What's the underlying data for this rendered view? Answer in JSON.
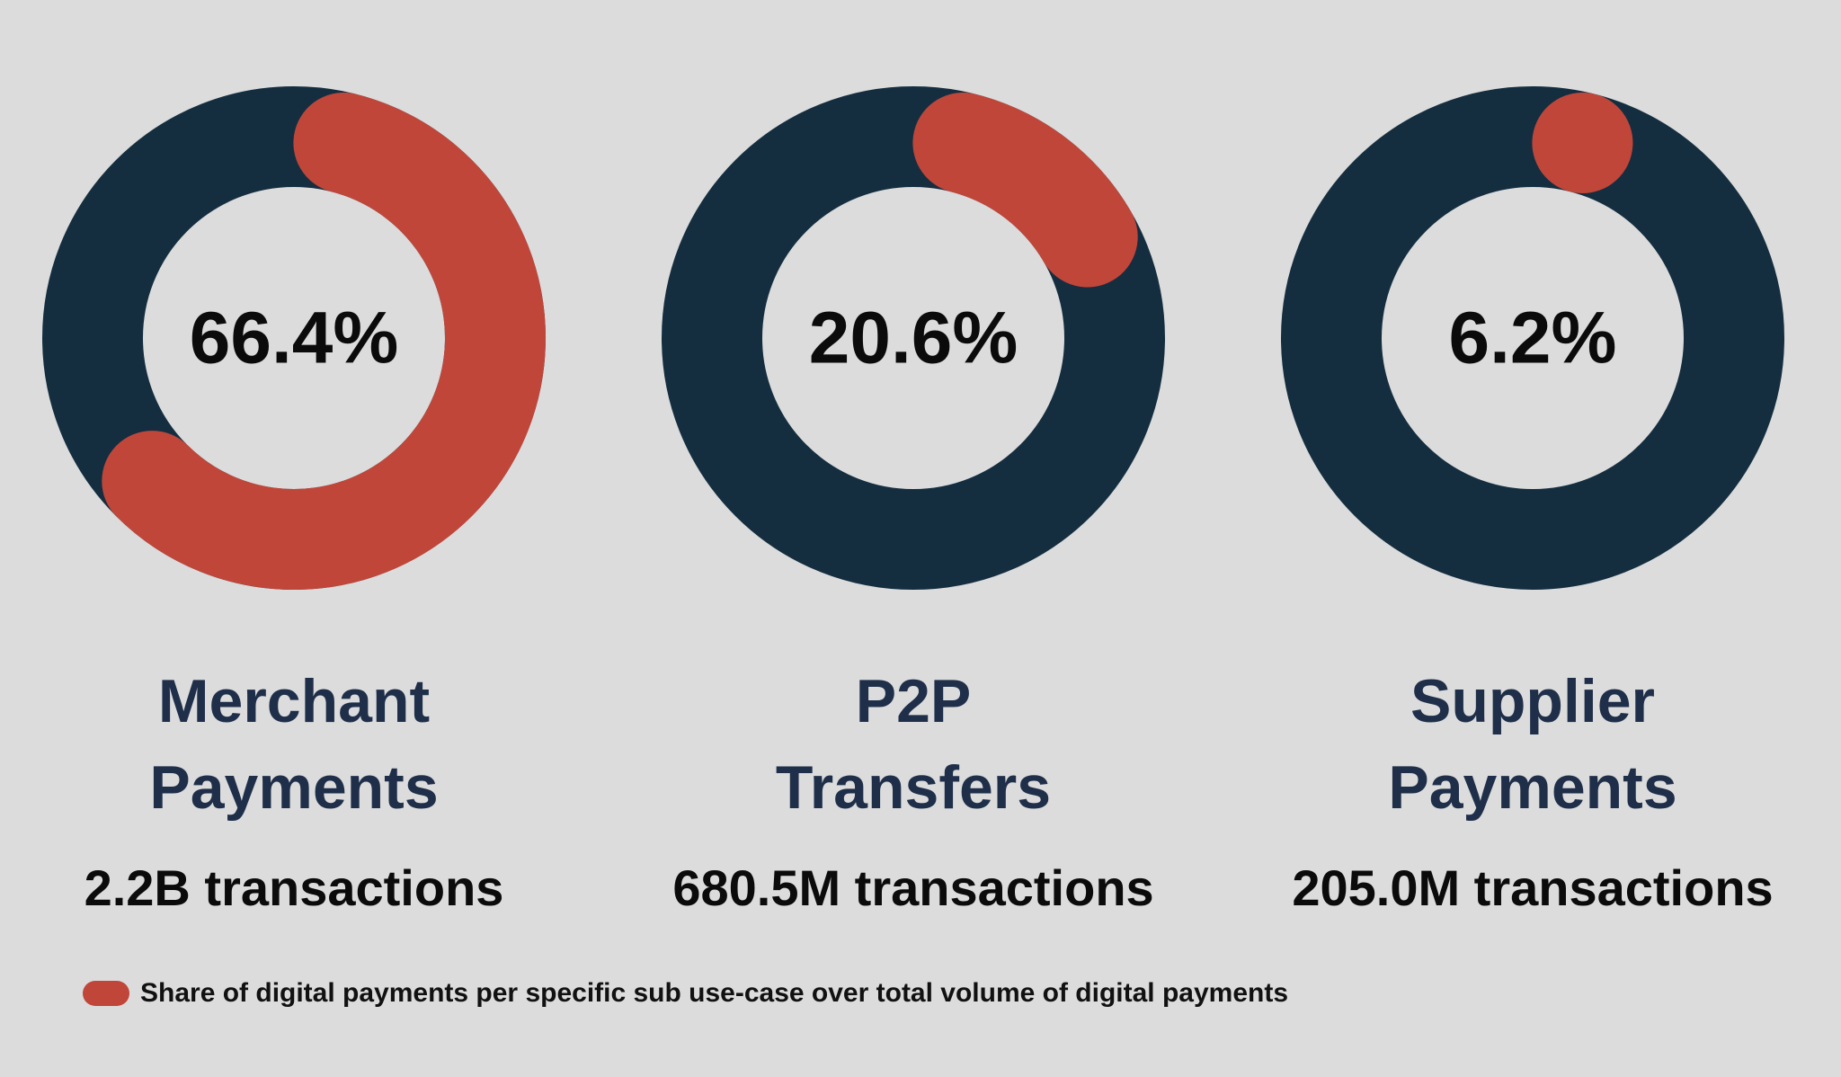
{
  "chart_data": {
    "type": "pie",
    "variant": "donut",
    "legend": {
      "position": "bottom-left",
      "label": "Share of digital payments per specific sub use-case over total volume of digital payments"
    },
    "colors": {
      "share": "#c0463a",
      "remainder": "#142e40",
      "background": "#dcdcdc"
    },
    "charts": [
      {
        "category_line1": "Merchant",
        "category_line2": "Payments",
        "share_percent": 66.4,
        "share_label": "66.4%",
        "transactions_label": "2.2B transactions"
      },
      {
        "category_line1": "P2P",
        "category_line2": "Transfers",
        "share_percent": 20.6,
        "share_label": "20.6%",
        "transactions_label": "680.5M transactions"
      },
      {
        "category_line1": "Supplier",
        "category_line2": "Payments",
        "share_percent": 6.2,
        "share_label": "6.2%",
        "transactions_label": "205.0M transactions"
      }
    ]
  }
}
